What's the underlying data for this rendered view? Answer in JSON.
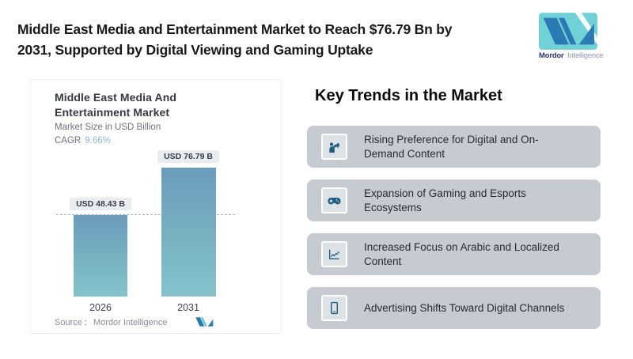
{
  "header": {
    "title_line1": "Middle East Media and Entertainment Market to Reach $76.79 Bn by",
    "title_line2": "2031, Supported by Digital Viewing and Gaming Uptake"
  },
  "brand": {
    "name_primary": "Mordor",
    "name_secondary": "Intelligence"
  },
  "chart_card": {
    "title_line1": "Middle East Media And",
    "title_line2": "Entertainment Market",
    "subtitle": "Market Size in USD Billion",
    "cagr_label": "CAGR",
    "cagr_value": "9.66%",
    "source_label": "Source :",
    "source_value": "Mordor Intelligence"
  },
  "chart_data": {
    "type": "bar",
    "title": "Middle East Media And Entertainment Market",
    "subtitle": "Market Size in USD Billion",
    "xlabel": "",
    "ylabel": "Market Size in USD Billion",
    "cagr_percent": 9.66,
    "categories": [
      "2026",
      "2031"
    ],
    "values": [
      48.43,
      76.79
    ],
    "bar_labels": [
      "USD 48.43 B",
      "USD 76.79 B"
    ],
    "reference_line_value": 48.43,
    "ylim": [
      0,
      80
    ],
    "grid": "off",
    "legend_position": "none",
    "colors": {
      "bar_gradient_top": "#6b9cbb",
      "bar_gradient_bottom": "#85c3cb",
      "reference_line_dashed": "#9fadba",
      "cagr_value_text": "#8fb8d2",
      "label_pill_bg": "#e9edf0"
    }
  },
  "trends": {
    "heading": "Key Trends in the Market",
    "items": [
      {
        "icon": "megaphone-person-icon",
        "text": "Rising Preference for Digital and On-Demand Content"
      },
      {
        "icon": "gamepad-icon",
        "text": "Expansion of Gaming and Esports Ecosystems"
      },
      {
        "icon": "line-chart-icon",
        "text": "Increased Focus on Arabic and Localized Content"
      },
      {
        "icon": "smartphone-icon",
        "text": "Advertising Shifts Toward Digital Channels"
      }
    ]
  },
  "ui_colors": {
    "trend_box_bg": "#c6cbd2",
    "icon_glyph": "#1f5c80",
    "logo_teal": "#70d1d6",
    "logo_blue": "#2c7ab3"
  }
}
